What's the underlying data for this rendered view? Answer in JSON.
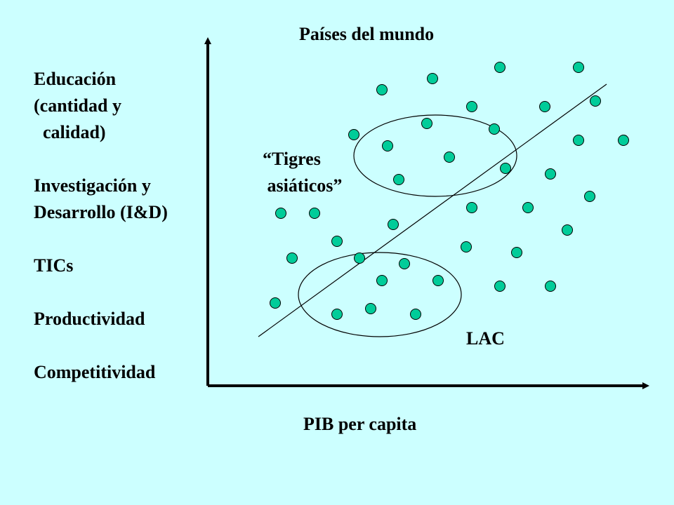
{
  "title": "Países del mundo",
  "x_label": "PIB per capita",
  "y_labels": {
    "education": [
      "Educación",
      "(cantidad y",
      "  calidad)"
    ],
    "rd": [
      "Investigación y",
      "Desarrollo (I&D)"
    ],
    "tics": "TICs",
    "productivity": "Productividad",
    "competitiveness": "Competitividad"
  },
  "annotations": {
    "tigres": [
      "“Tigres",
      " asiáticos”"
    ],
    "lac": "LAC"
  },
  "colors": {
    "background": "#ccffff",
    "dot_fill": "#00cc99",
    "stroke": "#000000"
  }
}
